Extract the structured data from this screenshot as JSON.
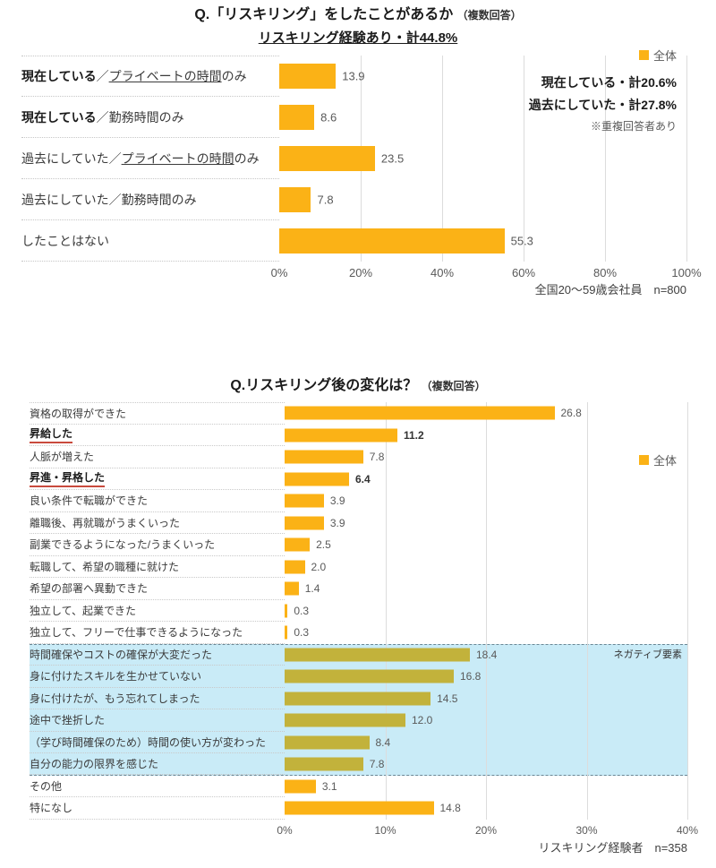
{
  "colors": {
    "bar_yellow": "#FBB216",
    "bar_olive": "#C2B23B",
    "negative_bg": "#C9EBF7",
    "red_underline": "#C94A3D"
  },
  "chart_data": [
    {
      "type": "bar",
      "orientation": "horizontal",
      "title": "Q.「リスキリング」をしたことがあるか",
      "title_note": "（複数回答）",
      "subtitle": "リスキリング経験あり・計44.8%",
      "legend_label": "全体",
      "legend_position": "right",
      "annotations": [
        "現在している・計20.6%",
        "過去にしていた・計27.8%"
      ],
      "annotation_note": "※重複回答者あり",
      "footer": "全国20～59歳会社員　n=800",
      "xlim": [
        0,
        100
      ],
      "x_ticks": [
        "0%",
        "20%",
        "40%",
        "60%",
        "80%",
        "100%"
      ],
      "grid": true,
      "categories": [
        "現在している／プライベートの時間のみ",
        "現在している／勤務時間のみ",
        "過去にしていた／プライベートの時間のみ",
        "過去にしていた／勤務時間のみ",
        "したことはない"
      ],
      "values": [
        13.9,
        8.6,
        23.5,
        7.8,
        55.3
      ],
      "rows": [
        {
          "parts": [
            {
              "t": "現在している",
              "b": 1
            },
            {
              "t": "／"
            },
            {
              "t": "プライベートの時間",
              "u": 1
            },
            {
              "t": "のみ"
            }
          ],
          "value": 13.9
        },
        {
          "parts": [
            {
              "t": "現在している",
              "b": 1
            },
            {
              "t": "／勤務時間のみ"
            }
          ],
          "value": 8.6
        },
        {
          "parts": [
            {
              "t": "過去にしていた／"
            },
            {
              "t": "プライベートの時間",
              "u": 1
            },
            {
              "t": "のみ"
            }
          ],
          "value": 23.5
        },
        {
          "parts": [
            {
              "t": "過去にしていた／勤務時間のみ"
            }
          ],
          "value": 7.8
        },
        {
          "parts": [
            {
              "t": "したことはない"
            }
          ],
          "value": 55.3
        }
      ]
    },
    {
      "type": "bar",
      "orientation": "horizontal",
      "title": "Q.リスキリング後の変化は？",
      "title_note": "（複数回答）",
      "legend_label": "全体",
      "legend_position": "right",
      "negative_label": "ネガティブ要素",
      "footer": "リスキリング経験者　n=358",
      "xlim": [
        0,
        40
      ],
      "x_ticks": [
        "0%",
        "10%",
        "20%",
        "30%",
        "40%"
      ],
      "grid": true,
      "categories": [
        "資格の取得ができた",
        "昇給した",
        "人脈が増えた",
        "昇進・昇格した",
        "良い条件で転職ができた",
        "離職後、再就職がうまくいった",
        "副業できるようになった/うまくいった",
        "転職して、希望の職種に就けた",
        "希望の部署へ異動できた",
        "独立して、起業できた",
        "独立して、フリーで仕事できるようになった",
        "時間確保やコストの確保が大変だった",
        "身に付けたスキルを生かせていない",
        "身に付けたが、もう忘れてしまった",
        "途中で挫折した",
        "（学び時間確保のため）時間の使い方が変わった",
        "自分の能力の限界を感じた",
        "その他",
        "特になし"
      ],
      "values": [
        26.8,
        11.2,
        7.8,
        6.4,
        3.9,
        3.9,
        2.5,
        2.0,
        1.4,
        0.3,
        0.3,
        18.4,
        16.8,
        14.5,
        12.0,
        8.4,
        7.8,
        3.1,
        14.8
      ],
      "rows": [
        {
          "label": "資格の取得ができた",
          "value": 26.8
        },
        {
          "label": "昇給した",
          "value": 11.2,
          "bold": true,
          "red_underline": true
        },
        {
          "label": "人脈が増えた",
          "value": 7.8
        },
        {
          "label": "昇進・昇格した",
          "value": 6.4,
          "bold": true,
          "red_underline": true
        },
        {
          "label": "良い条件で転職ができた",
          "value": 3.9
        },
        {
          "label": "離職後、再就職がうまくいった",
          "value": 3.9
        },
        {
          "label": "副業できるようになった/うまくいった",
          "value": 2.5
        },
        {
          "label": "転職して、希望の職種に就けた",
          "value": 2.0
        },
        {
          "label": "希望の部署へ異動できた",
          "value": 1.4
        },
        {
          "label": "独立して、起業できた",
          "value": 0.3
        },
        {
          "label": "独立して、フリーで仕事できるようになった",
          "value": 0.3
        },
        {
          "label": "時間確保やコストの確保が大変だった",
          "value": 18.4,
          "negative": true
        },
        {
          "label": "身に付けたスキルを生かせていない",
          "value": 16.8,
          "negative": true
        },
        {
          "label": "身に付けたが、もう忘れてしまった",
          "value": 14.5,
          "negative": true
        },
        {
          "label": "途中で挫折した",
          "value": 12.0,
          "negative": true
        },
        {
          "label": "（学び時間確保のため）時間の使い方が変わった",
          "value": 8.4,
          "negative": true
        },
        {
          "label": "自分の能力の限界を感じた",
          "value": 7.8,
          "negative": true
        },
        {
          "label": "その他",
          "value": 3.1
        },
        {
          "label": "特になし",
          "value": 14.8
        }
      ]
    }
  ]
}
